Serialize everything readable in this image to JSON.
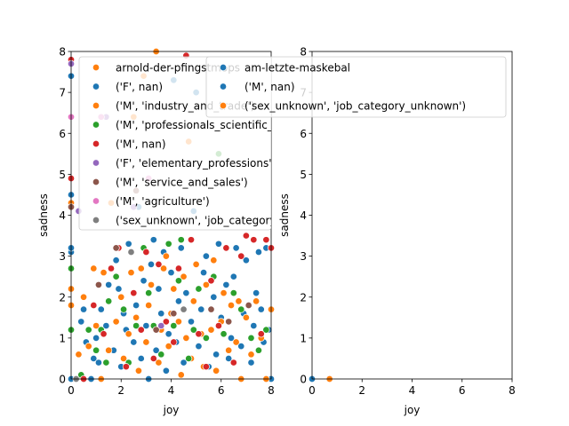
{
  "colors": {
    "blue": "#1f77b4",
    "orange": "#ff7f0e",
    "green": "#2ca02c",
    "red": "#d62728",
    "purple": "#9467bd",
    "brown": "#8c564b",
    "pink": "#e377c2",
    "gray": "#7f7f7f"
  },
  "chart_data": [
    {
      "type": "scatter",
      "title": "",
      "xlabel": "joy",
      "ylabel": "sadness",
      "xlim": [
        0,
        8
      ],
      "ylim": [
        0,
        8
      ],
      "xticks": [
        "0",
        "2",
        "4",
        "6",
        "8"
      ],
      "yticks": [
        "0",
        "1",
        "2",
        "3",
        "4",
        "5",
        "6",
        "7",
        "8"
      ],
      "grid": false,
      "legend_position": "top-right",
      "legend": [
        {
          "label": "arnold-der-pfingstmops",
          "color": "orange"
        },
        {
          "label": "('F', nan)",
          "color": "blue"
        },
        {
          "label": "('M', 'industry_and_trade')",
          "color": "orange"
        },
        {
          "label": "('M', 'professionals_scientific_technical')",
          "color": "green"
        },
        {
          "label": "('M', nan)",
          "color": "red"
        },
        {
          "label": "('F', 'elementary_professions')",
          "color": "purple"
        },
        {
          "label": "('M', 'service_and_sales')",
          "color": "brown"
        },
        {
          "label": "('M', 'agriculture')",
          "color": "pink"
        },
        {
          "label": "('sex_unknown', 'job_category_unknown')",
          "color": "gray"
        }
      ],
      "series": [
        {
          "name": "('F', nan)",
          "color": "blue",
          "points": [
            [
              0,
              0
            ],
            [
              0,
              3.1
            ],
            [
              0,
              3.2
            ],
            [
              0,
              4.5
            ],
            [
              0,
              7.4
            ],
            [
              0.4,
              1.4
            ],
            [
              0.5,
              1.7
            ],
            [
              0.6,
              0.9
            ],
            [
              0.8,
              0
            ],
            [
              0.9,
              0.5
            ],
            [
              1,
              1
            ],
            [
              1.1,
              0.4
            ],
            [
              1.2,
              1.7
            ],
            [
              1.4,
              1.3
            ],
            [
              1.5,
              2.3
            ],
            [
              1.7,
              0.7
            ],
            [
              1.8,
              2.9
            ],
            [
              1.9,
              2.2
            ],
            [
              2,
              0.3
            ],
            [
              2.1,
              1.6
            ],
            [
              2.2,
              1.2
            ],
            [
              2.3,
              3.3
            ],
            [
              2.5,
              0.9
            ],
            [
              2.6,
              1.8
            ],
            [
              2.7,
              4.2
            ],
            [
              2.8,
              0.5
            ],
            [
              2.9,
              2.4
            ],
            [
              3,
              1.3
            ],
            [
              3.1,
              0
            ],
            [
              3.2,
              2.8
            ],
            [
              3.3,
              3.4
            ],
            [
              3.4,
              0.7
            ],
            [
              3.5,
              2.2
            ],
            [
              3.6,
              1.6
            ],
            [
              3.7,
              3.1
            ],
            [
              3.8,
              0.2
            ],
            [
              3.9,
              1.1
            ],
            [
              4,
              2.6
            ],
            [
              4.1,
              7.3
            ],
            [
              4.2,
              0.9
            ],
            [
              4.3,
              1.9
            ],
            [
              4.4,
              3.2
            ],
            [
              4.5,
              0.4
            ],
            [
              4.6,
              2.1
            ],
            [
              4.8,
              1.4
            ],
            [
              4.9,
              4.1
            ],
            [
              5,
              7
            ],
            [
              5.1,
              0.8
            ],
            [
              5.2,
              1.7
            ],
            [
              5.3,
              2.6
            ],
            [
              5.4,
              3
            ],
            [
              5.5,
              0.3
            ],
            [
              5.6,
              1.2
            ],
            [
              5.7,
              2
            ],
            [
              5.8,
              0.6
            ],
            [
              5.9,
              3.3
            ],
            [
              6,
              1.5
            ],
            [
              6.2,
              2.3
            ],
            [
              6.3,
              0.5
            ],
            [
              6.4,
              1
            ],
            [
              6.5,
              2.5
            ],
            [
              6.6,
              3.2
            ],
            [
              6.8,
              0.8
            ],
            [
              6.9,
              1.6
            ],
            [
              7,
              2.9
            ],
            [
              7.2,
              0.4
            ],
            [
              7.3,
              1.3
            ],
            [
              7.4,
              2.1
            ],
            [
              7.5,
              3.1
            ],
            [
              7.6,
              1.7
            ],
            [
              7.7,
              0.9
            ],
            [
              7.8,
              3.2
            ],
            [
              7.9,
              1.2
            ],
            [
              8,
              0
            ]
          ]
        },
        {
          "name": "('M', 'industry_and_trade')",
          "color": "orange",
          "points": [
            [
              0,
              1.8
            ],
            [
              0,
              2.2
            ],
            [
              0,
              4.3
            ],
            [
              0.3,
              0.6
            ],
            [
              0.5,
              2
            ],
            [
              0.7,
              0.8
            ],
            [
              0.9,
              2.7
            ],
            [
              1,
              1.3
            ],
            [
              1.2,
              0
            ],
            [
              1.3,
              2.6
            ],
            [
              1.5,
              0.7
            ],
            [
              1.6,
              4.3
            ],
            [
              1.8,
              1.4
            ],
            [
              2,
              2
            ],
            [
              2.1,
              0.5
            ],
            [
              2.3,
              1.1
            ],
            [
              2.4,
              2.6
            ],
            [
              2.5,
              6.4
            ],
            [
              2.6,
              1.5
            ],
            [
              2.7,
              0.2
            ],
            [
              2.8,
              2.7
            ],
            [
              2.9,
              7.4
            ],
            [
              3,
              0.9
            ],
            [
              3.1,
              1.8
            ],
            [
              3.2,
              2.3
            ],
            [
              3.4,
              8
            ],
            [
              3.5,
              0.4
            ],
            [
              3.6,
              1.2
            ],
            [
              3.7,
              2.7
            ],
            [
              3.8,
              3
            ],
            [
              3.9,
              0.8
            ],
            [
              4,
              1.6
            ],
            [
              4.1,
              2.2
            ],
            [
              4.3,
              1.4
            ],
            [
              4.4,
              0.1
            ],
            [
              4.5,
              2.5
            ],
            [
              4.6,
              1
            ],
            [
              4.7,
              5.8
            ],
            [
              4.8,
              0.5
            ],
            [
              4.9,
              1.9
            ],
            [
              5,
              2.8
            ],
            [
              5.2,
              1.1
            ],
            [
              5.3,
              0.3
            ],
            [
              5.4,
              2.3
            ],
            [
              5.6,
              1.2
            ],
            [
              5.7,
              2.9
            ],
            [
              5.8,
              0.2
            ],
            [
              6,
              1.4
            ],
            [
              6.1,
              2.1
            ],
            [
              6.3,
              0.7
            ],
            [
              6.4,
              1.8
            ],
            [
              6.6,
              0.9
            ],
            [
              6.7,
              1.9
            ],
            [
              6.8,
              0
            ],
            [
              7,
              1.5
            ],
            [
              7.2,
              0.6
            ],
            [
              7.4,
              1.9
            ],
            [
              7.6,
              1
            ],
            [
              7.8,
              0
            ],
            [
              8,
              1.7
            ]
          ]
        },
        {
          "name": "('M', 'professionals_scientific_technical')",
          "color": "green",
          "points": [
            [
              0,
              1.2
            ],
            [
              0,
              2.7
            ],
            [
              0.4,
              0.1
            ],
            [
              0.7,
              1.2
            ],
            [
              1,
              0.7
            ],
            [
              1.2,
              1.2
            ],
            [
              1.4,
              0.4
            ],
            [
              1.5,
              1.9
            ],
            [
              1.8,
              2.5
            ],
            [
              2.1,
              1.7
            ],
            [
              2.3,
              0.4
            ],
            [
              2.6,
              1.3
            ],
            [
              2.9,
              3.2
            ],
            [
              3.1,
              2.1
            ],
            [
              3.3,
              1.3
            ],
            [
              3.6,
              0.6
            ],
            [
              3.9,
              3.3
            ],
            [
              4.1,
              1.3
            ],
            [
              4.3,
              2.4
            ],
            [
              4.4,
              3.4
            ],
            [
              4.7,
              0.5
            ],
            [
              4.9,
              1.2
            ],
            [
              5.1,
              2.2
            ],
            [
              5.4,
              1
            ],
            [
              5.7,
              2.5
            ],
            [
              5.9,
              5.5
            ],
            [
              6.1,
              1.1
            ],
            [
              6.5,
              2.1
            ],
            [
              6.8,
              1.7
            ],
            [
              7.2,
              1
            ],
            [
              7.5,
              0.7
            ],
            [
              7.8,
              1.2
            ]
          ]
        },
        {
          "name": "('M', nan)",
          "color": "red",
          "points": [
            [
              0,
              4.9
            ],
            [
              0,
              7.8
            ],
            [
              0.5,
              0
            ],
            [
              0.9,
              1.8
            ],
            [
              1.3,
              1.1
            ],
            [
              1.6,
              2.7
            ],
            [
              1.9,
              3.2
            ],
            [
              2.2,
              0.3
            ],
            [
              2.5,
              2.1
            ],
            [
              2.8,
              1.2
            ],
            [
              3,
              3.1
            ],
            [
              3.3,
              0.5
            ],
            [
              3.5,
              2.8
            ],
            [
              3.8,
              1.4
            ],
            [
              4.1,
              0.9
            ],
            [
              4.3,
              2.7
            ],
            [
              4.6,
              7.9
            ],
            [
              4.8,
              3.4
            ],
            [
              5.1,
              1.1
            ],
            [
              5.4,
              0.3
            ],
            [
              5.6,
              2.4
            ],
            [
              5.9,
              1.3
            ],
            [
              6.2,
              3.2
            ],
            [
              6.5,
              0.4
            ],
            [
              6.8,
              3
            ],
            [
              7,
              3.5
            ],
            [
              7.3,
              3.4
            ],
            [
              7.6,
              1.1
            ],
            [
              7.8,
              3.4
            ],
            [
              8,
              3.2
            ]
          ]
        },
        {
          "name": "('F', 'elementary_professions')",
          "color": "purple",
          "points": [
            [
              0,
              7.7
            ],
            [
              0.3,
              4.1
            ],
            [
              1.4,
              6.4
            ],
            [
              2.5,
              4.2
            ],
            [
              3.6,
              1.3
            ]
          ]
        },
        {
          "name": "('M', 'service_and_sales')",
          "color": "brown",
          "points": [
            [
              0,
              4.2
            ],
            [
              1.1,
              2.3
            ],
            [
              1.8,
              3.2
            ],
            [
              2.6,
              4.6
            ],
            [
              3.4,
              1.2
            ],
            [
              4.1,
              1.6
            ],
            [
              5.6,
              1.7
            ],
            [
              6.3,
              1.4
            ],
            [
              7.1,
              1.8
            ]
          ]
        },
        {
          "name": "('M', 'agriculture')",
          "color": "pink",
          "points": [
            [
              0,
              6.4
            ],
            [
              1.2,
              6.4
            ],
            [
              3.1,
              4.9
            ]
          ]
        },
        {
          "name": "('sex_unknown', 'job_category_unknown')",
          "color": "gray",
          "points": [
            [
              0.2,
              0
            ],
            [
              2.4,
              3.1
            ],
            [
              4.5,
              1.7
            ]
          ]
        }
      ]
    },
    {
      "type": "scatter",
      "title": "",
      "xlabel": "joy",
      "ylabel": "sadness",
      "xlim": [
        0,
        8
      ],
      "ylim": [
        0,
        8
      ],
      "xticks": [
        "0",
        "2",
        "4",
        "6",
        "8"
      ],
      "yticks": [
        "0",
        "1",
        "2",
        "3",
        "4",
        "5",
        "6",
        "7",
        "8"
      ],
      "grid": false,
      "legend_position": "top",
      "legend": [
        {
          "label": "am-letzte-maskebal",
          "color": "blue"
        },
        {
          "label": "('M', nan)",
          "color": "blue"
        },
        {
          "label": "('sex_unknown', 'job_category_unknown')",
          "color": "orange"
        }
      ],
      "series": [
        {
          "name": "('M', nan)",
          "color": "blue",
          "points": [
            [
              0,
              0
            ]
          ]
        },
        {
          "name": "('sex_unknown', 'job_category_unknown')",
          "color": "orange",
          "points": [
            [
              0.7,
              0
            ]
          ]
        }
      ]
    }
  ]
}
